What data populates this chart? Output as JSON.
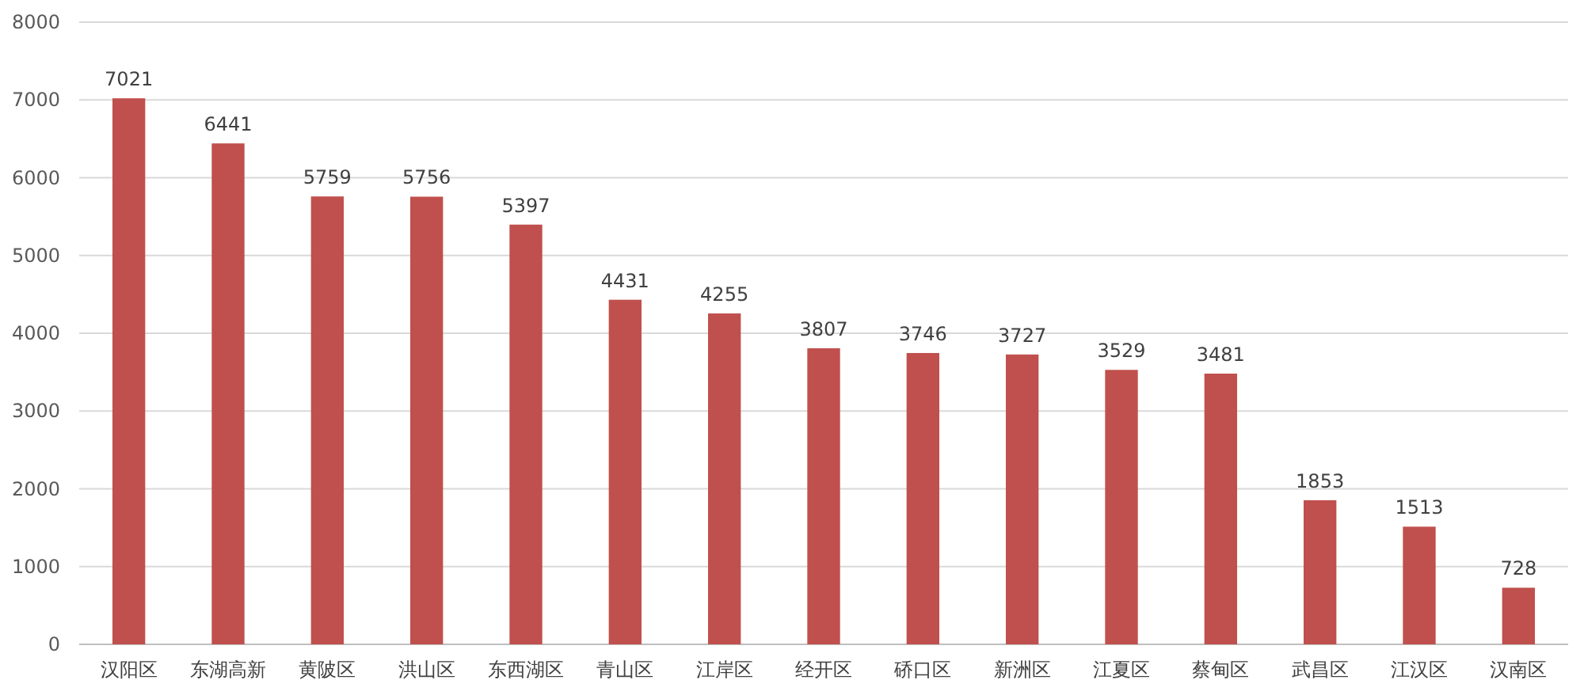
{
  "chart_data": {
    "type": "bar",
    "categories": [
      "汉阳区",
      "东湖高新",
      "黄陂区",
      "洪山区",
      "东西湖区",
      "青山区",
      "江岸区",
      "经开区",
      "硚口区",
      "新洲区",
      "江夏区",
      "蔡甸区",
      "武昌区",
      "江汉区",
      "汉南区"
    ],
    "values": [
      7021,
      6441,
      5759,
      5756,
      5397,
      4431,
      4255,
      3807,
      3746,
      3727,
      3529,
      3481,
      1853,
      1513,
      728
    ],
    "color": "#c0504d",
    "ylim": [
      0,
      8000
    ],
    "yticks": [
      0,
      1000,
      2000,
      3000,
      4000,
      5000,
      6000,
      7000,
      8000
    ],
    "grid": "y",
    "data_labels": true
  }
}
